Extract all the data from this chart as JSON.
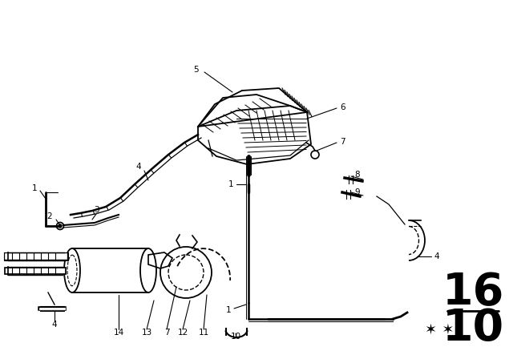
{
  "bg_color": "#ffffff",
  "line_color": "#000000",
  "page_num_top": "16",
  "page_num_bot": "10",
  "stars_text": "**",
  "page_num_fontsize": 40,
  "stars_fontsize": 13,
  "label_fontsize": 7.5,
  "figsize": [
    6.4,
    4.48
  ],
  "dpi": 100,
  "xlim": [
    0,
    640
  ],
  "ylim": [
    0,
    448
  ]
}
